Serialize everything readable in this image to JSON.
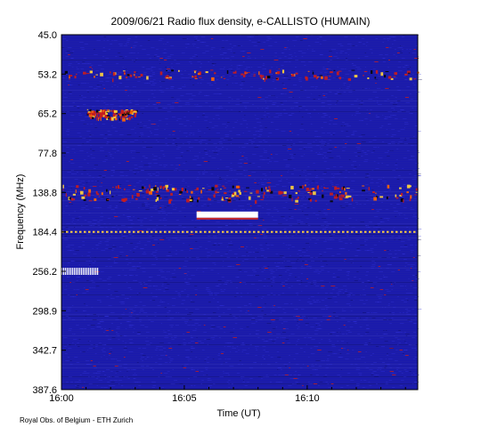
{
  "chart_data": {
    "type": "heatmap",
    "title": "2009/06/21  Radio flux density, e-CALLISTO (HUMAIN)",
    "xlabel": "Time (UT)",
    "ylabel": "Frequency (MHz)",
    "x_tick_labels": [
      "16:00",
      "16:05",
      "16:10"
    ],
    "y_tick_labels": [
      "45.0",
      "53.2",
      "65.2",
      "77.8",
      "138.8",
      "184.4",
      "256.2",
      "298.9",
      "342.7",
      "387.6"
    ],
    "xlim": [
      "16:00",
      "16:14:30"
    ],
    "ylim": [
      45.0,
      387.6
    ],
    "y_axis_direction": "frequency increases downward",
    "features": [
      {
        "frequency_mhz": 53.2,
        "time_start": "16:00",
        "time_end": "16:14:30",
        "intensity": "high",
        "kind": "interference band"
      },
      {
        "frequency_mhz": 65.2,
        "time_start": "16:01",
        "time_end": "16:03",
        "intensity": "high",
        "kind": "interference band"
      },
      {
        "frequency_mhz": 138.8,
        "time_start": "16:00",
        "time_end": "16:14:30",
        "intensity": "very high",
        "kind": "interference band"
      },
      {
        "frequency_mhz": 165,
        "time_start": "16:05:30",
        "time_end": "16:08",
        "intensity": "saturated",
        "kind": "burst bar"
      },
      {
        "frequency_mhz": 184.4,
        "time_start": "16:00",
        "time_end": "16:14:30",
        "intensity": "high",
        "kind": "interference line"
      },
      {
        "frequency_mhz": 256.2,
        "time_start": "16:00",
        "time_end": "16:01:30",
        "intensity": "saturated",
        "kind": "interference patch"
      }
    ],
    "colors": {
      "background": "#1e1ea8",
      "low": "#1414b4",
      "mid": "#c81c1c",
      "high": "#ffd23c",
      "saturated": "#ffffff"
    },
    "grid": false
  },
  "footer": {
    "credit": "Royal Obs. of Belgium - ETH Zurich"
  }
}
